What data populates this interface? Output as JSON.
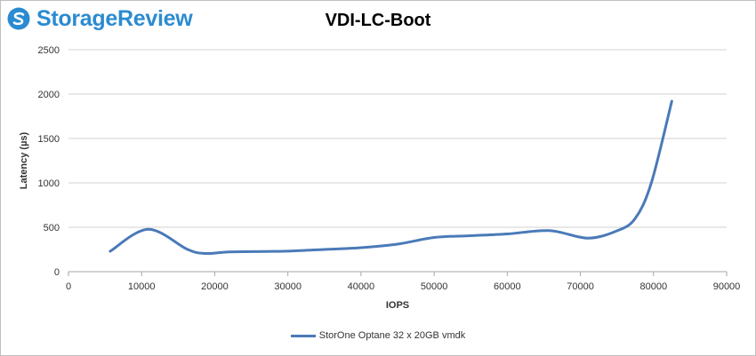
{
  "brand": {
    "name": "StorageReview",
    "color": "#2b8bd1",
    "icon": "storage-review-logo-icon"
  },
  "chart_data": {
    "type": "line",
    "title": "VDI-LC-Boot",
    "xlabel": "IOPS",
    "ylabel": "Latency (µs)",
    "xlim": [
      0,
      90000
    ],
    "ylim": [
      0,
      2500
    ],
    "xticks": [
      0,
      10000,
      20000,
      30000,
      40000,
      50000,
      60000,
      70000,
      80000,
      90000
    ],
    "yticks": [
      0,
      500,
      1000,
      1500,
      2000,
      2500
    ],
    "grid": true,
    "legend_position": "bottom",
    "series": [
      {
        "name": "StorOne Optane 32 x 20GB vmdk",
        "color": "#4a7ab8",
        "points": [
          [
            5700,
            230
          ],
          [
            10900,
            478
          ],
          [
            16300,
            250
          ],
          [
            18800,
            205
          ],
          [
            22000,
            223
          ],
          [
            27000,
            228
          ],
          [
            30500,
            233
          ],
          [
            35000,
            250
          ],
          [
            40000,
            270
          ],
          [
            45000,
            310
          ],
          [
            50000,
            385
          ],
          [
            55000,
            405
          ],
          [
            60000,
            425
          ],
          [
            65800,
            462
          ],
          [
            71000,
            378
          ],
          [
            75000,
            460
          ],
          [
            77500,
            600
          ],
          [
            79700,
            1000
          ],
          [
            82500,
            1920
          ]
        ]
      }
    ]
  }
}
